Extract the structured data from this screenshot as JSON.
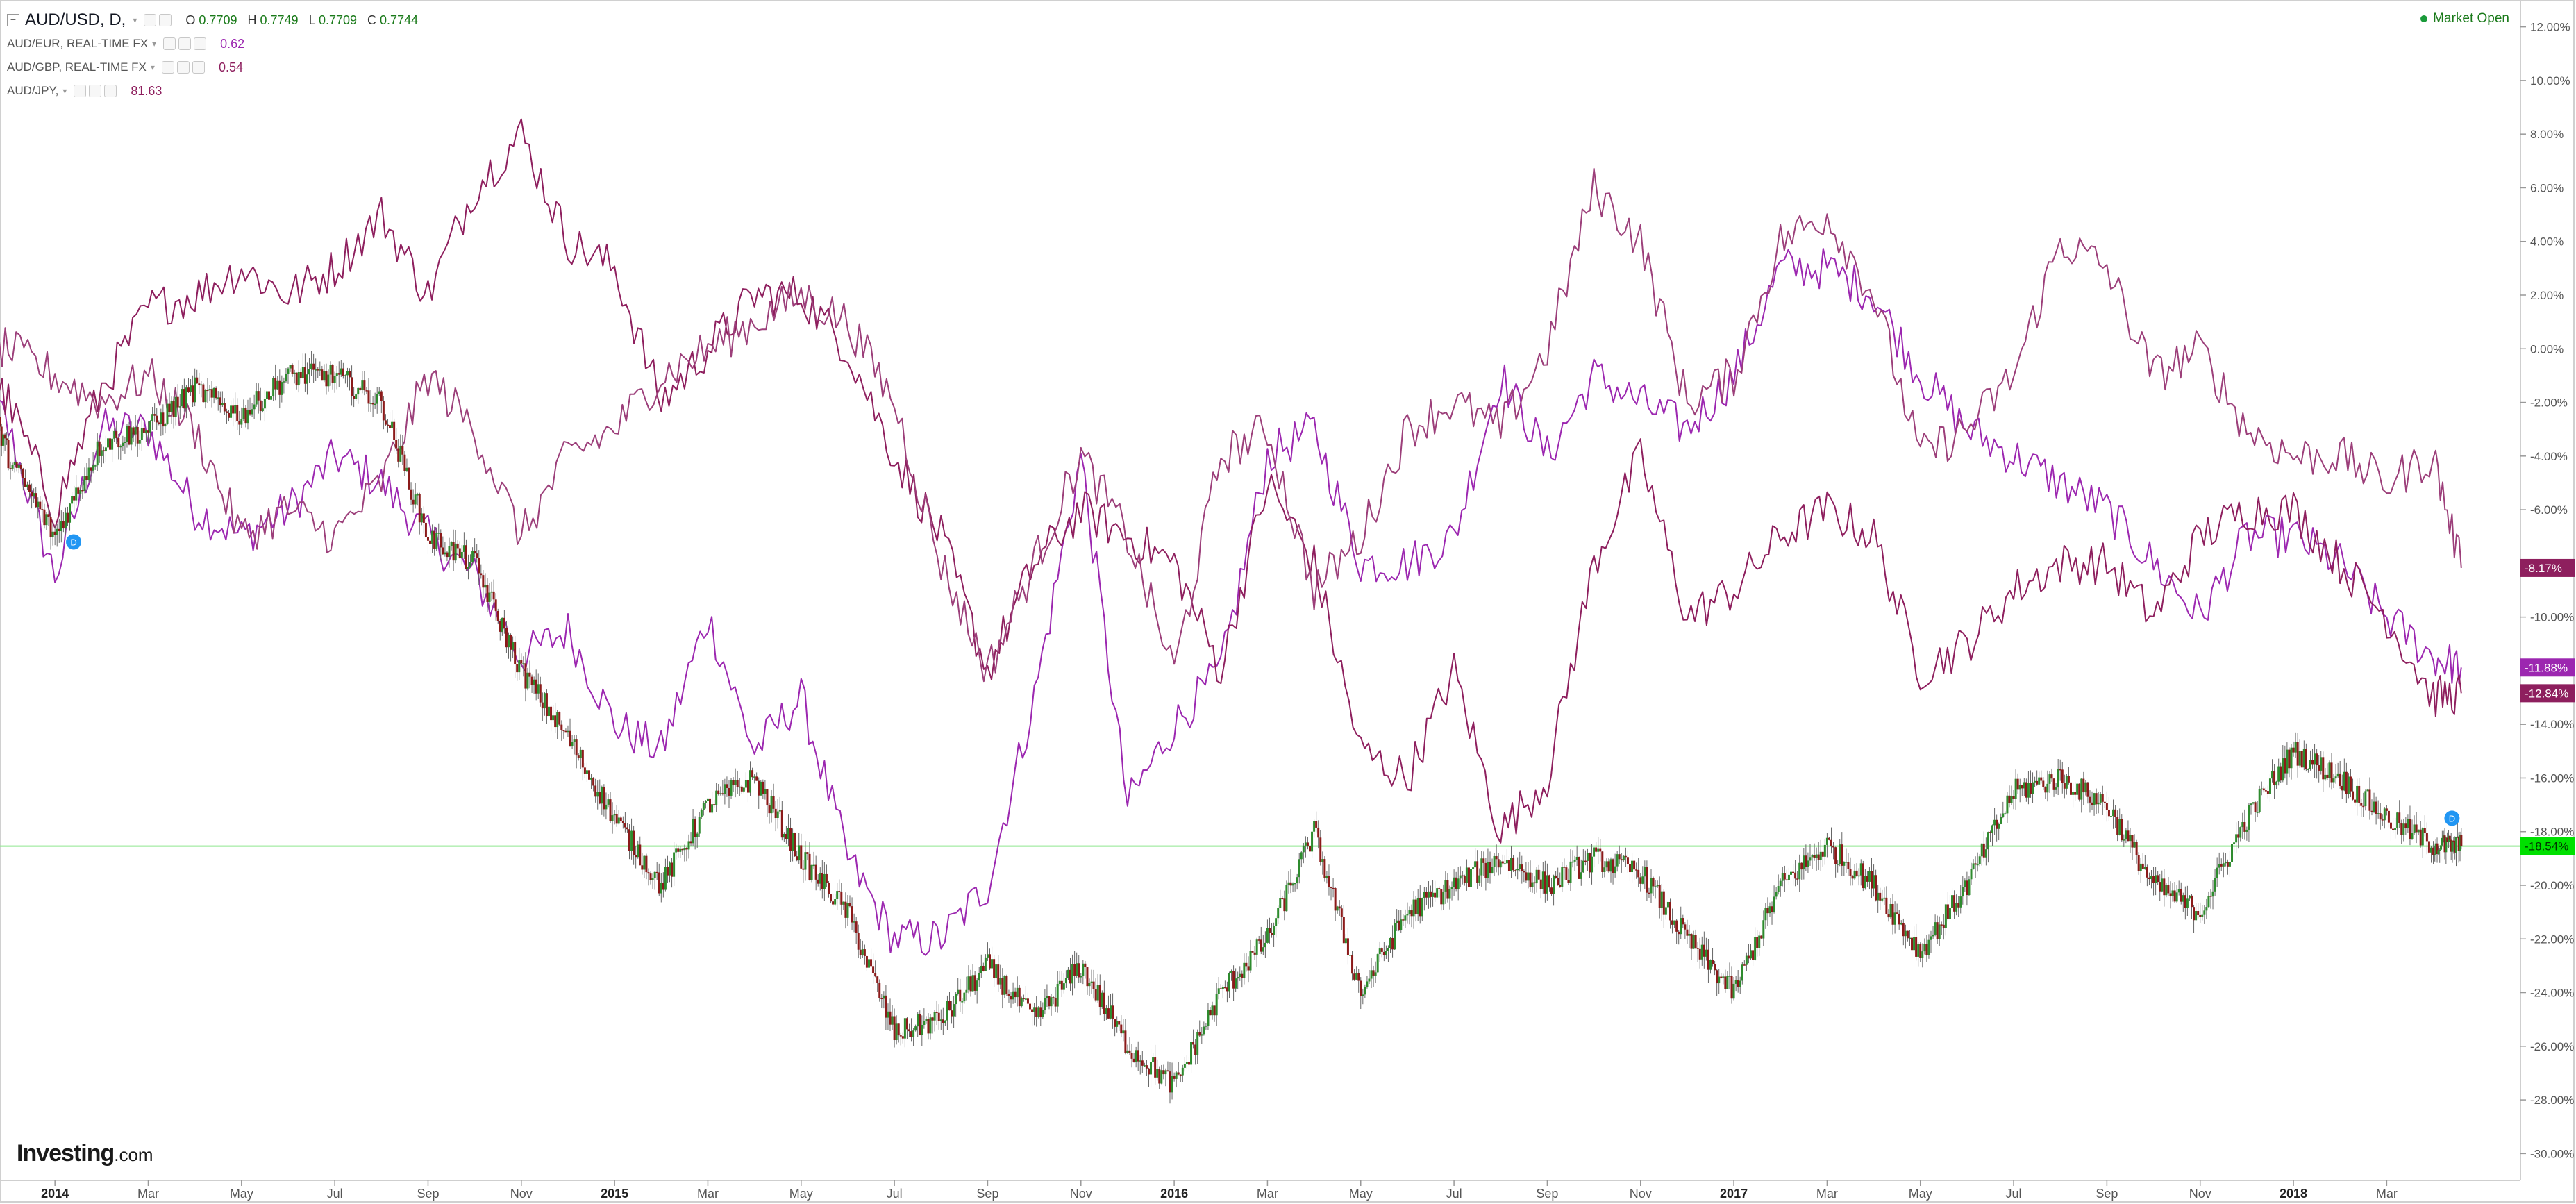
{
  "header": {
    "main": {
      "symbol": "AUD/USD, D,",
      "o_label": "O",
      "o": "0.7709",
      "h_label": "H",
      "h": "0.7749",
      "l_label": "L",
      "l": "0.7709",
      "c_label": "C",
      "c": "0.7744"
    },
    "compares": [
      {
        "symbol": "AUD/EUR, REAL-TIME FX",
        "value": "0.62",
        "color": "#9c27b0"
      },
      {
        "symbol": "AUD/GBP, REAL-TIME FX",
        "value": "0.54",
        "color": "#8e1f5e"
      },
      {
        "symbol": "AUD/JPY,",
        "value": "81.63",
        "color": "#8e1f5e"
      }
    ],
    "market_status": "Market Open"
  },
  "branding": {
    "name": "Investing",
    "suffix": ".com"
  },
  "chart_data": {
    "type": "line",
    "title": "",
    "ylim": [
      -31,
      13
    ],
    "yticks": [
      "12.00%",
      "10.00%",
      "8.00%",
      "6.00%",
      "4.00%",
      "2.00%",
      "0.00%",
      "-2.00%",
      "-4.00%",
      "-6.00%",
      "-8.00%",
      "-10.00%",
      "-12.00%",
      "-14.00%",
      "-16.00%",
      "-18.00%",
      "-20.00%",
      "-22.00%",
      "-24.00%",
      "-26.00%",
      "-28.00%",
      "-30.00%"
    ],
    "ytick_values": [
      12,
      10,
      8,
      6,
      4,
      2,
      0,
      -2,
      -4,
      -6,
      -8,
      -10,
      -12,
      -14,
      -16,
      -18,
      -20,
      -22,
      -24,
      -26,
      -28,
      -30
    ],
    "xlim": [
      0,
      53.6
    ],
    "xticks": [
      {
        "label": "2014",
        "x": 1,
        "bold": true
      },
      {
        "label": "Mar",
        "x": 3
      },
      {
        "label": "May",
        "x": 5
      },
      {
        "label": "Jul",
        "x": 7
      },
      {
        "label": "Sep",
        "x": 9
      },
      {
        "label": "Nov",
        "x": 11
      },
      {
        "label": "2015",
        "x": 13,
        "bold": true
      },
      {
        "label": "Mar",
        "x": 15
      },
      {
        "label": "May",
        "x": 17
      },
      {
        "label": "Jul",
        "x": 19
      },
      {
        "label": "Sep",
        "x": 21
      },
      {
        "label": "Nov",
        "x": 23
      },
      {
        "label": "2016",
        "x": 25,
        "bold": true
      },
      {
        "label": "Mar",
        "x": 27
      },
      {
        "label": "May",
        "x": 29
      },
      {
        "label": "Jul",
        "x": 31
      },
      {
        "label": "Sep",
        "x": 33
      },
      {
        "label": "Nov",
        "x": 35
      },
      {
        "label": "2017",
        "x": 37,
        "bold": true
      },
      {
        "label": "Mar",
        "x": 39
      },
      {
        "label": "May",
        "x": 41
      },
      {
        "label": "Jul",
        "x": 43
      },
      {
        "label": "Sep",
        "x": 45
      },
      {
        "label": "Nov",
        "x": 47
      },
      {
        "label": "2018",
        "x": 49,
        "bold": true
      },
      {
        "label": "Mar",
        "x": 51
      }
    ],
    "series": [
      {
        "name": "AUD/USD",
        "style": "candles",
        "color_up": "#2e8b2e",
        "color_down": "#8b1a1a",
        "x": [
          -0.8,
          0,
          1,
          2,
          3,
          4,
          5,
          6,
          7,
          8,
          9,
          10,
          11,
          12,
          13,
          14,
          15,
          16,
          17,
          18,
          19,
          20,
          21,
          22,
          23,
          24,
          25,
          26,
          27,
          28,
          29,
          30,
          31,
          32,
          33,
          34,
          35,
          36,
          37,
          38,
          39,
          40,
          41,
          42,
          43,
          44,
          45,
          46,
          47,
          48,
          49,
          50,
          51,
          52,
          52.6
        ],
        "values": [
          0,
          -4,
          -7,
          -3.5,
          -3,
          -1.5,
          -2.5,
          -1,
          -1,
          -2,
          -7,
          -8,
          -12,
          -14.5,
          -17.5,
          -20,
          -17,
          -16,
          -19,
          -21,
          -25.5,
          -25,
          -23,
          -25,
          -23,
          -26,
          -27.5,
          -24,
          -22,
          -18,
          -24,
          -21,
          -20,
          -19,
          -20,
          -19,
          -19.5,
          -22,
          -24,
          -20,
          -18.5,
          -20,
          -22.5,
          -20,
          -16.5,
          -16,
          -17,
          -20,
          -21,
          -17.5,
          -15,
          -16,
          -17.5,
          -18.5,
          -18.54
        ],
        "last_label": "-18.54%",
        "label_bg": "#00e000"
      },
      {
        "name": "AUD/EUR",
        "color": "#9c27b0",
        "x": [
          -0.8,
          0,
          1,
          2,
          3,
          4,
          5,
          6,
          7,
          8,
          9,
          10,
          11,
          12,
          13,
          14,
          15,
          16,
          17,
          18,
          19,
          20,
          21,
          22,
          23,
          24,
          25,
          26,
          27,
          28,
          29,
          30,
          31,
          32,
          33,
          34,
          35,
          36,
          37,
          38,
          39,
          40,
          41,
          42,
          43,
          44,
          45,
          46,
          47,
          48,
          49,
          50,
          51,
          52,
          52.6
        ],
        "values": [
          0,
          -3,
          -8.5,
          -3,
          -3,
          -6,
          -7,
          -6,
          -4,
          -5,
          -7,
          -8.5,
          -11.5,
          -10.5,
          -14,
          -15,
          -10,
          -15,
          -13,
          -19,
          -22,
          -22,
          -20,
          -13,
          -4,
          -17,
          -14,
          -12,
          -4,
          -3,
          -8,
          -8,
          -7,
          -1,
          -4,
          -1,
          -2,
          -3,
          -1,
          3,
          3,
          2,
          -1,
          -3,
          -4,
          -5,
          -6,
          -8,
          -10,
          -7,
          -7,
          -8,
          -10,
          -11.5,
          -11.88
        ],
        "last_label": "-11.88%",
        "label_bg": "#9c27b0"
      },
      {
        "name": "AUD/GBP",
        "color": "#8e1f5e",
        "x": [
          -0.8,
          0,
          1,
          2,
          3,
          4,
          5,
          6,
          7,
          8,
          9,
          10,
          11,
          12,
          13,
          14,
          15,
          16,
          17,
          18,
          19,
          20,
          21,
          22,
          23,
          24,
          25,
          26,
          27,
          28,
          29,
          30,
          31,
          32,
          33,
          34,
          35,
          36,
          37,
          38,
          39,
          40,
          41,
          42,
          43,
          44,
          45,
          46,
          47,
          48,
          49,
          50,
          51,
          52,
          52.6
        ],
        "values": [
          0,
          -2,
          -6,
          -1.5,
          1.5,
          2,
          3,
          2,
          3,
          5,
          2,
          6,
          8,
          4,
          3,
          -2,
          0,
          2,
          2,
          0,
          -4,
          -7,
          -12,
          -8,
          -6,
          -7,
          -8,
          -12,
          -5,
          -8,
          -15,
          -16,
          -12,
          -18,
          -16,
          -8,
          -4,
          -10,
          -9,
          -7,
          -6,
          -7,
          -12,
          -11,
          -9,
          -8,
          -8,
          -10,
          -7,
          -6,
          -6,
          -8,
          -10,
          -13,
          -12.84
        ],
        "last_label": "-12.84%",
        "label_bg": "#8e1f5e"
      },
      {
        "name": "AUD/JPY",
        "color": "#9c3f7a",
        "x": [
          -0.8,
          0,
          1,
          2,
          3,
          4,
          5,
          6,
          7,
          8,
          9,
          10,
          11,
          12,
          13,
          14,
          15,
          16,
          17,
          18,
          19,
          20,
          21,
          22,
          23,
          24,
          25,
          26,
          27,
          28,
          29,
          30,
          31,
          32,
          33,
          34,
          35,
          36,
          37,
          38,
          39,
          40,
          41,
          42,
          43,
          44,
          45,
          46,
          47,
          48,
          49,
          50,
          51,
          52,
          52.6
        ],
        "values": [
          0,
          0,
          -1,
          -2,
          -1,
          -3,
          -7,
          -6,
          -7,
          -5,
          -1,
          -3,
          -7,
          -4,
          -3,
          -1,
          0,
          1,
          2,
          1,
          -2,
          -8,
          -12,
          -8,
          -4,
          -7,
          -12,
          -4,
          -3,
          -9,
          -7,
          -3,
          -2,
          -3,
          0,
          6,
          4,
          -2,
          -1,
          4,
          5,
          2,
          -4,
          -3,
          -1,
          4,
          3,
          -1,
          0,
          -3,
          -4,
          -4,
          -5,
          -4,
          -8.17
        ],
        "last_label": "-8.17%",
        "label_bg": "#8e1f5e"
      }
    ],
    "reference_line": {
      "value": -18.54,
      "color": "#8fe88f"
    }
  }
}
